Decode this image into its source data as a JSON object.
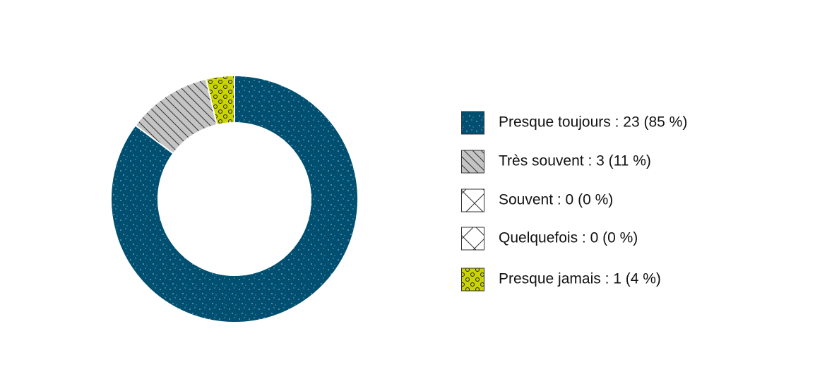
{
  "chart_data": {
    "type": "donut",
    "categories": [
      "Presque toujours : 23 (85 %)",
      "Très souvent : 3 (11 %)",
      "Souvent : 0 (0 %)",
      "Quelquefois : 0 (0 %)",
      "Presque jamais : 1 (4 %)"
    ],
    "values": [
      23,
      3,
      0,
      0,
      1
    ],
    "colors": [
      "#004e70",
      "#c4c4c4",
      "#ffffff",
      "#ffffff",
      "#c9d400"
    ],
    "patterns": [
      "dots",
      "hatch",
      "cross",
      "cross",
      "circles"
    ],
    "legend": "right"
  }
}
